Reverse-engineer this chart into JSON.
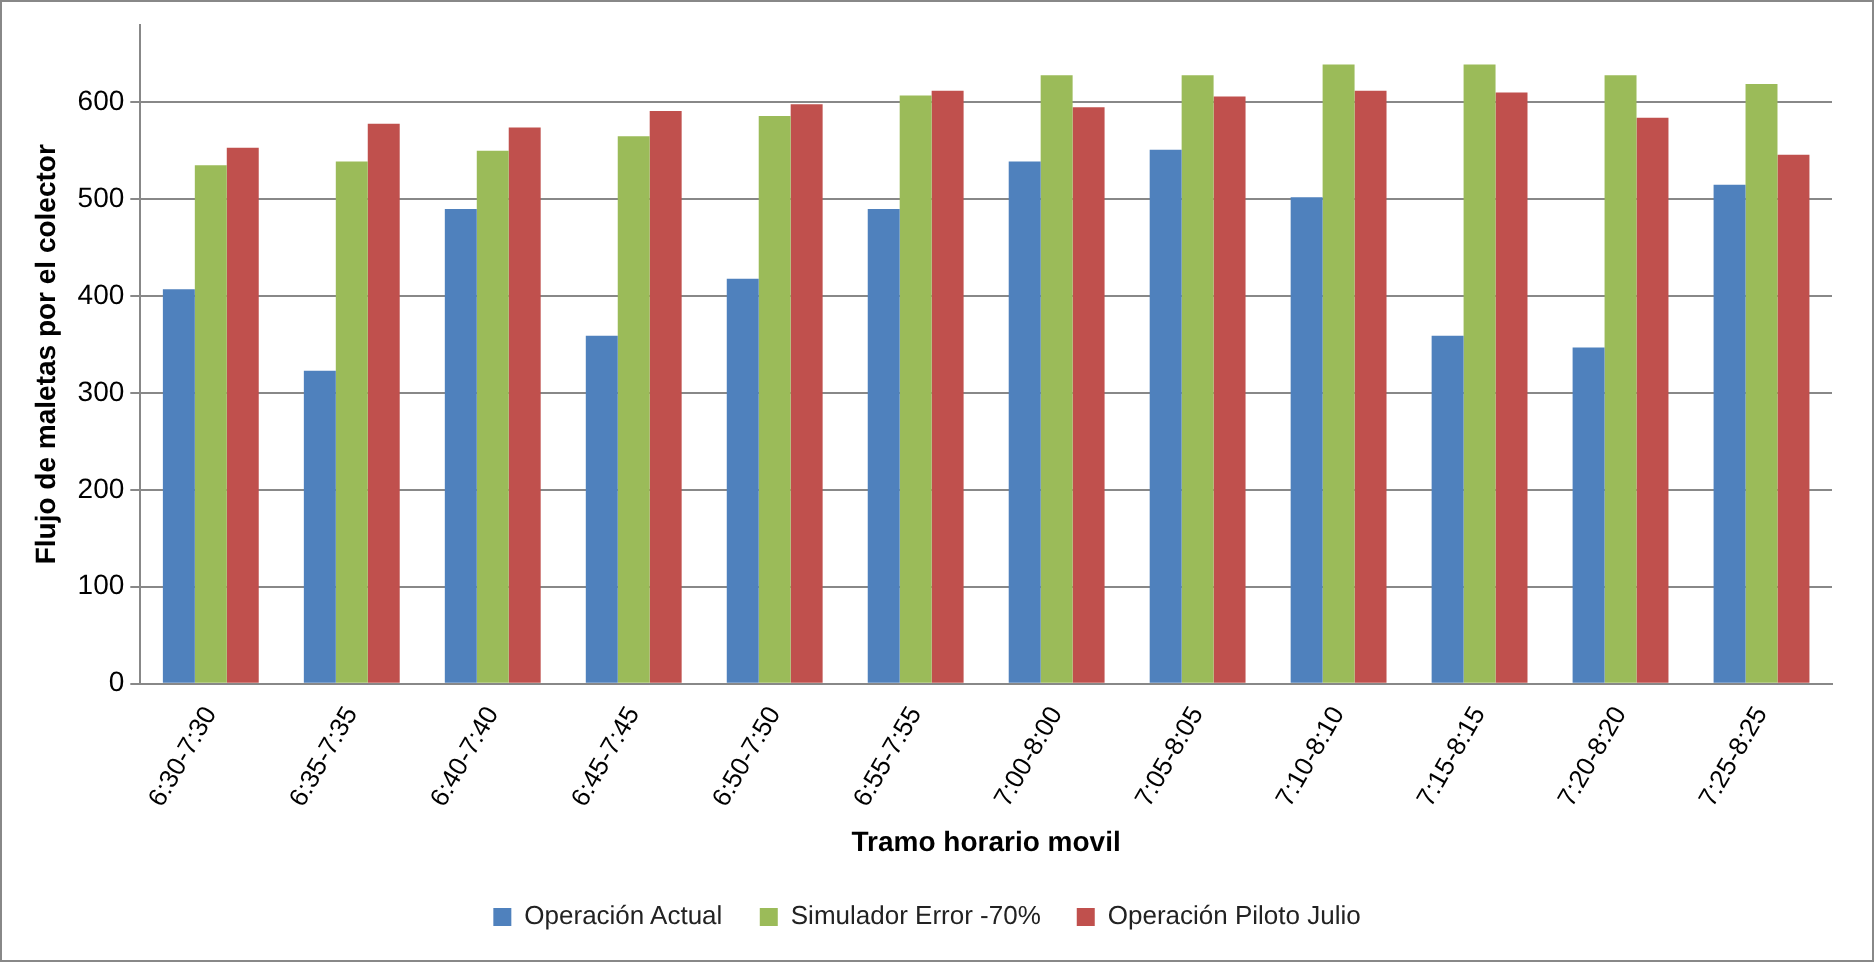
{
  "chart_data": {
    "type": "bar",
    "xlabel": "Tramo horario movil",
    "ylabel": "Flujo de maletas por el colector",
    "categories": [
      "6:30-7:30",
      "6:35-7:35",
      "6:40-7:40",
      "6:45-7:45",
      "6:50-7:50",
      "6:55-7:55",
      "7:00-8:00",
      "7:05-8:05",
      "7:10-8:10",
      "7:15-8:15",
      "7:20-8:20",
      "7:25-8:25"
    ],
    "series": [
      {
        "name": "Operación Actual",
        "color": "#4f81bd",
        "values": [
          407,
          323,
          490,
          359,
          418,
          490,
          539,
          551,
          502,
          359,
          347,
          515
        ]
      },
      {
        "name": "Simulador Error -70%",
        "color": "#9bbb59",
        "values": [
          535,
          539,
          550,
          565,
          586,
          607,
          628,
          628,
          639,
          639,
          628,
          619
        ]
      },
      {
        "name": "Operación Piloto Julio",
        "color": "#c0504d",
        "values": [
          553,
          578,
          574,
          591,
          598,
          612,
          595,
          606,
          612,
          610,
          584,
          546
        ]
      }
    ],
    "ylim": [
      0,
      680
    ],
    "yticks": [
      0,
      100,
      200,
      300,
      400,
      500,
      600
    ],
    "grid": "y",
    "legend": "bottom"
  }
}
